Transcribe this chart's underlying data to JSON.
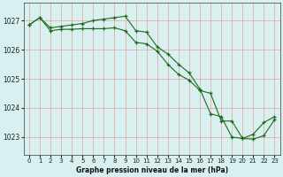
{
  "title": "Graphe pression niveau de la mer (hPa)",
  "bg_color": "#d8f0f0",
  "grid_color": "#e8a0a0",
  "line_color": "#1a6b1a",
  "marker_color": "#1a6b1a",
  "ylim": [
    1022.4,
    1027.6
  ],
  "xlim": [
    -0.5,
    23.5
  ],
  "yticks": [
    1023,
    1024,
    1025,
    1026,
    1027
  ],
  "xticks": [
    0,
    1,
    2,
    3,
    4,
    5,
    6,
    7,
    8,
    9,
    10,
    11,
    12,
    13,
    14,
    15,
    16,
    17,
    18,
    19,
    20,
    21,
    22,
    23
  ],
  "line1": [
    1026.85,
    1027.1,
    1026.75,
    1026.8,
    1026.85,
    1026.9,
    1027.0,
    1027.05,
    1027.1,
    1027.15,
    1026.65,
    1026.6,
    1026.1,
    1025.85,
    1025.5,
    1025.2,
    1024.65,
    1023.8,
    1023.7,
    1023.0,
    1022.95,
    1023.1,
    1023.5,
    1023.7
  ],
  "line2": [
    1026.85,
    1027.1,
    1026.65,
    1026.7,
    1026.7,
    1026.72,
    1026.72,
    1026.72,
    1026.75,
    1026.65,
    1026.25,
    1026.2,
    1025.95,
    1025.5,
    1025.15,
    1024.95,
    1024.6,
    1024.5,
    1023.55,
    1023.55,
    1022.95,
    1022.93,
    1023.05,
    1023.6
  ]
}
